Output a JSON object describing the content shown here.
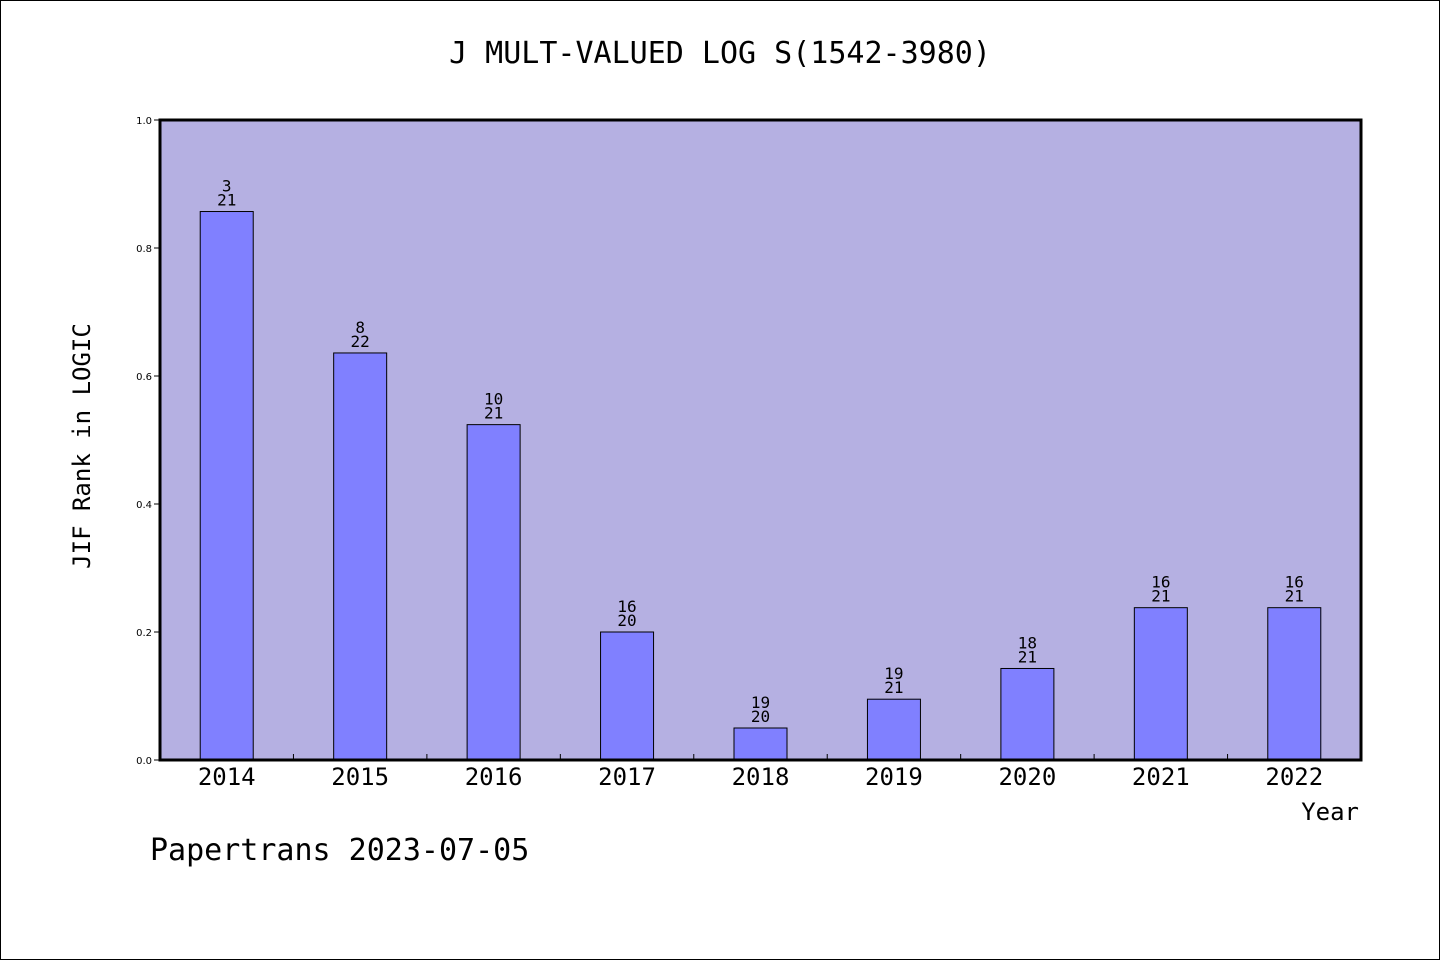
{
  "chart_data": {
    "type": "bar",
    "title": "J MULT-VALUED LOG S(1542-3980)",
    "xlabel": "Year",
    "ylabel": "JIF Rank in LOGIC",
    "categories": [
      "2014",
      "2015",
      "2016",
      "2017",
      "2018",
      "2019",
      "2020",
      "2021",
      "2022"
    ],
    "values": [
      0.857,
      0.636,
      0.524,
      0.2,
      0.05,
      0.095,
      0.143,
      0.238,
      0.238
    ],
    "bar_labels": [
      {
        "rank": "3",
        "total": "21"
      },
      {
        "rank": "8",
        "total": "22"
      },
      {
        "rank": "10",
        "total": "21"
      },
      {
        "rank": "16",
        "total": "20"
      },
      {
        "rank": "19",
        "total": "20"
      },
      {
        "rank": "19",
        "total": "21"
      },
      {
        "rank": "18",
        "total": "21"
      },
      {
        "rank": "16",
        "total": "21"
      },
      {
        "rank": "16",
        "total": "21"
      }
    ],
    "ylim": [
      0,
      1.0
    ],
    "yticks": [
      "0.0",
      "0.2",
      "0.4",
      "0.6",
      "0.8",
      "1.0"
    ],
    "grid": false,
    "colors": {
      "plot_background": "#b5b0e2",
      "bar_fill": "#8080ff",
      "bar_edge": "#000000"
    }
  },
  "footer": "Papertrans 2023-07-05"
}
